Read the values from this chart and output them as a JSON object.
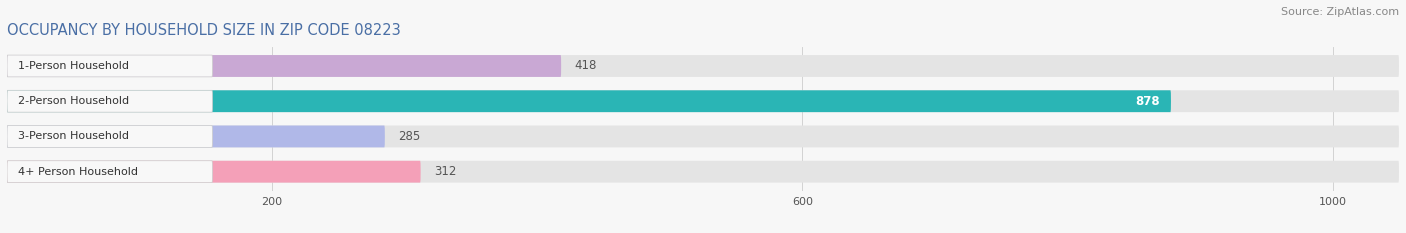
{
  "title": "OCCUPANCY BY HOUSEHOLD SIZE IN ZIP CODE 08223",
  "source": "Source: ZipAtlas.com",
  "categories": [
    "1-Person Household",
    "2-Person Household",
    "3-Person Household",
    "4+ Person Household"
  ],
  "values": [
    418,
    878,
    285,
    312
  ],
  "bar_colors": [
    "#c9a8d4",
    "#2ab5b5",
    "#b0b8e8",
    "#f4a0b8"
  ],
  "bar_bg_color": "#e4e4e4",
  "label_color_light": "#ffffff",
  "label_color_dark": "#555555",
  "white_cap_color": "#f0f0f0",
  "xlim_max": 1050,
  "xticks": [
    200,
    600,
    1000
  ],
  "title_fontsize": 10.5,
  "source_fontsize": 8,
  "bar_label_fontsize": 8.5,
  "cat_label_fontsize": 8,
  "figsize": [
    14.06,
    2.33
  ],
  "dpi": 100
}
